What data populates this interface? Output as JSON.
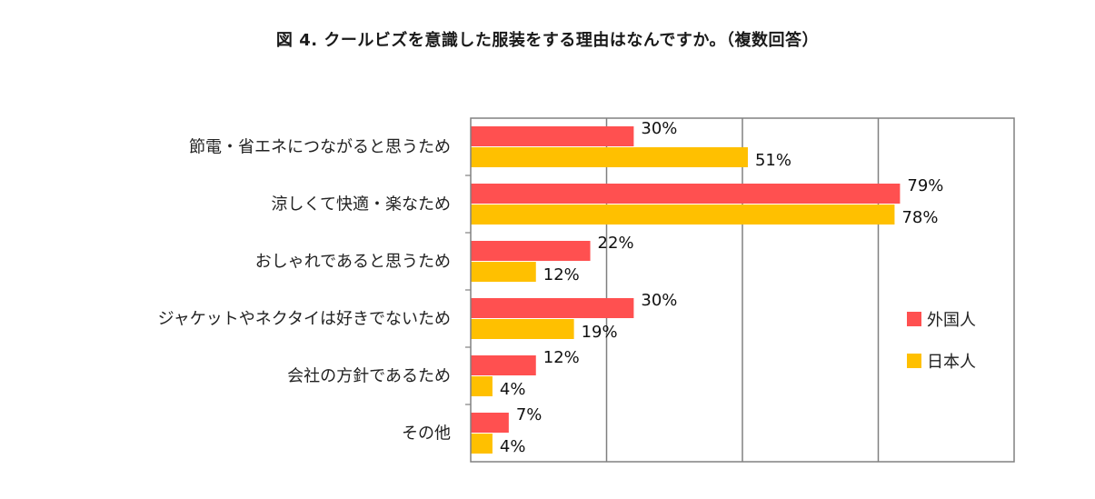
{
  "chart_data": {
    "type": "bar",
    "orientation": "horizontal",
    "title": "図 4.  クールビズを意識した服装をする理由はなんですか。（複数回答）",
    "categories": [
      "節電・省エネにつながると思うため",
      "涼しくて快適・楽なため",
      "おしゃれであると思うため",
      "ジャケットやネクタイは好きでないため",
      "会社の方針であるため",
      "その他"
    ],
    "series": [
      {
        "name": "外国人",
        "color": "#ff5050",
        "values": [
          30,
          79,
          22,
          30,
          12,
          7
        ]
      },
      {
        "name": "日本人",
        "color": "#ffc000",
        "values": [
          51,
          78,
          12,
          19,
          4,
          4
        ]
      }
    ],
    "value_suffix": "%",
    "xlim": [
      0,
      100
    ],
    "grid": true,
    "legend": "right"
  }
}
